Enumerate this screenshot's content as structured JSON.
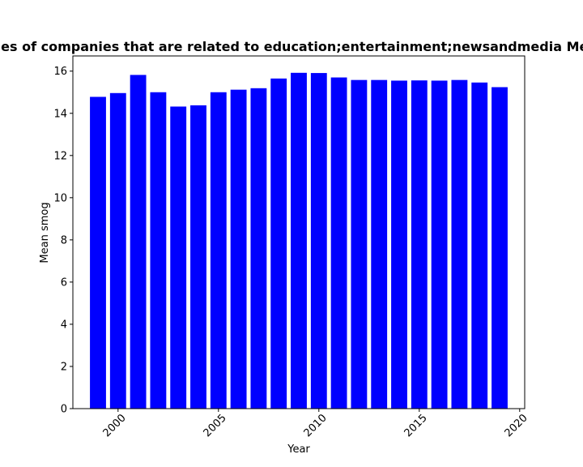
{
  "chart_data": {
    "type": "bar",
    "title": "Mean smog of privacy policies of companies that are related to education;entertainment;newsandmedia Mean smog in privacy policies",
    "xlabel": "Year",
    "ylabel": "Mean smog",
    "bar_color": "#0000ff",
    "x": [
      1999,
      2000,
      2001,
      2002,
      2003,
      2004,
      2005,
      2006,
      2007,
      2008,
      2009,
      2010,
      2011,
      2012,
      2013,
      2014,
      2015,
      2016,
      2017,
      2018,
      2019
    ],
    "values": [
      14.78,
      14.96,
      15.82,
      15.0,
      14.32,
      14.38,
      15.0,
      15.12,
      15.19,
      15.65,
      15.92,
      15.91,
      15.7,
      15.58,
      15.58,
      15.55,
      15.56,
      15.55,
      15.58,
      15.46,
      15.24
    ],
    "xlim": [
      1997.75,
      2020.25
    ],
    "ylim": [
      0,
      16.72
    ],
    "xticks": [
      "2000",
      "2005",
      "2010",
      "2015",
      "2020"
    ],
    "yticks": [
      "0",
      "2",
      "4",
      "6",
      "8",
      "10",
      "12",
      "14",
      "16"
    ],
    "grid": false,
    "legend": "none"
  }
}
